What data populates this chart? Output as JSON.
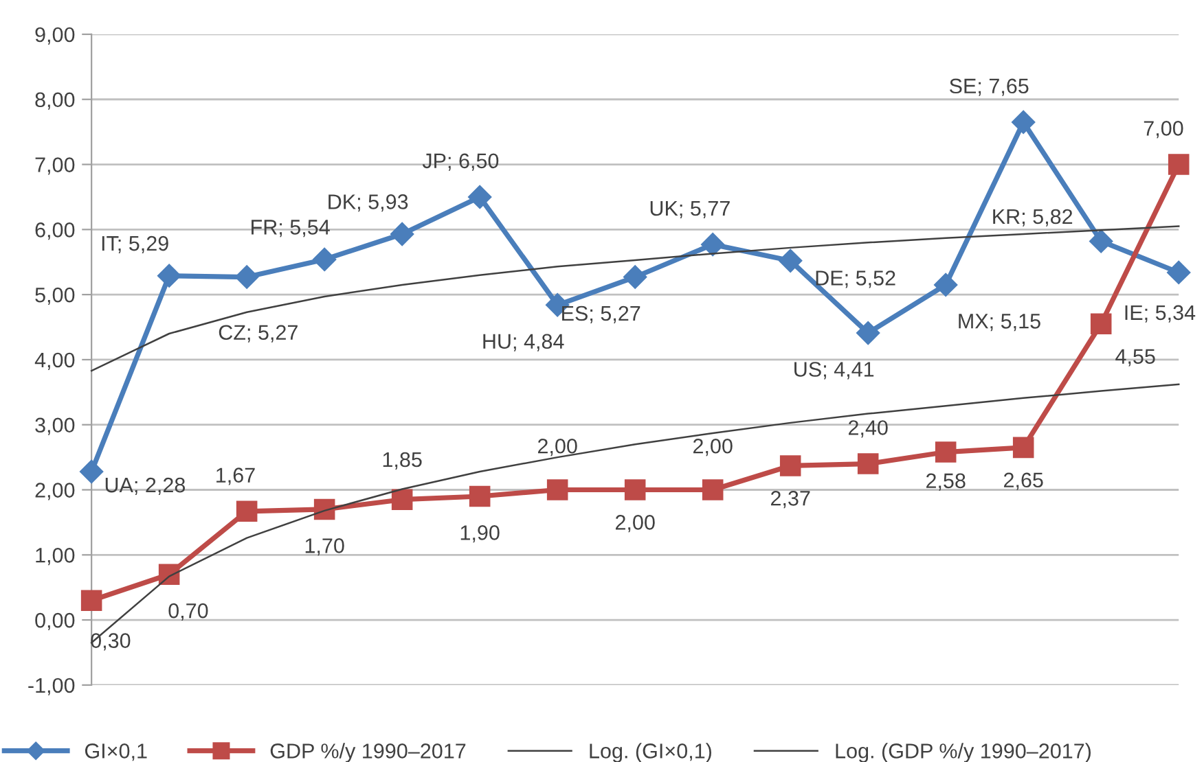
{
  "chart_data": {
    "type": "line",
    "categories": [
      null,
      null,
      null,
      null,
      null,
      null,
      null,
      null,
      null,
      null,
      null,
      null,
      null,
      null,
      null
    ],
    "series": [
      {
        "name": "GI×0,1",
        "color": "#4a7ebb",
        "marker": "diamond",
        "values": [
          2.28,
          5.29,
          5.27,
          5.54,
          5.93,
          6.5,
          4.84,
          5.27,
          5.77,
          5.52,
          4.41,
          5.15,
          7.65,
          5.82,
          5.34
        ],
        "value_labels": [
          "UA; 2,28",
          "IT; 5,29",
          "CZ; 5,27",
          "FR; 5,54",
          "DK; 5,93",
          "JP; 6,50",
          "HU; 4,84",
          "ES; 5,27",
          "UK; 5,77",
          "DE; 5,52",
          "US; 4,41",
          "MX; 5,15",
          "SE; 7,65",
          "KR; 5,82",
          "IE; 5,34"
        ]
      },
      {
        "name": "GDP %/y 1990–2017",
        "color": "#be4b48",
        "marker": "square",
        "values": [
          0.3,
          0.7,
          1.67,
          1.7,
          1.85,
          1.9,
          2.0,
          2.0,
          2.0,
          2.37,
          2.4,
          2.58,
          2.65,
          4.55,
          7.0
        ],
        "value_labels": [
          "0,30",
          "0,70",
          "1,67",
          "1,70",
          "1,85",
          "1,90",
          "2,00",
          "2,00",
          "2,00",
          "2,37",
          "2,40",
          "2,58",
          "2,65",
          "4,55",
          "7,00"
        ]
      },
      {
        "name": "Log. (GI×0,1)",
        "color": "#404040",
        "marker": "none",
        "values": [
          3.83,
          4.4,
          4.73,
          4.97,
          5.15,
          5.3,
          5.43,
          5.53,
          5.63,
          5.72,
          5.8,
          5.87,
          5.93,
          5.99,
          6.05
        ]
      },
      {
        "name": "Log. (GDP %/y 1990–2017)",
        "color": "#404040",
        "marker": "none",
        "values": [
          -0.35,
          0.67,
          1.26,
          1.68,
          2.01,
          2.28,
          2.5,
          2.7,
          2.87,
          3.03,
          3.17,
          3.29,
          3.41,
          3.52,
          3.62
        ]
      }
    ],
    "ylim": [
      -1,
      9
    ],
    "yticks": [
      {
        "value": -1,
        "label": "-1,00"
      },
      {
        "value": 0,
        "label": "0,00"
      },
      {
        "value": 1,
        "label": "1,00"
      },
      {
        "value": 2,
        "label": "2,00"
      },
      {
        "value": 3,
        "label": "3,00"
      },
      {
        "value": 4,
        "label": "4,00"
      },
      {
        "value": 5,
        "label": "5,00"
      },
      {
        "value": 6,
        "label": "6,00"
      },
      {
        "value": 7,
        "label": "7,00"
      },
      {
        "value": 8,
        "label": "8,00"
      },
      {
        "value": 9,
        "label": "9,00"
      }
    ],
    "grid": "y",
    "legend": "bottom"
  }
}
